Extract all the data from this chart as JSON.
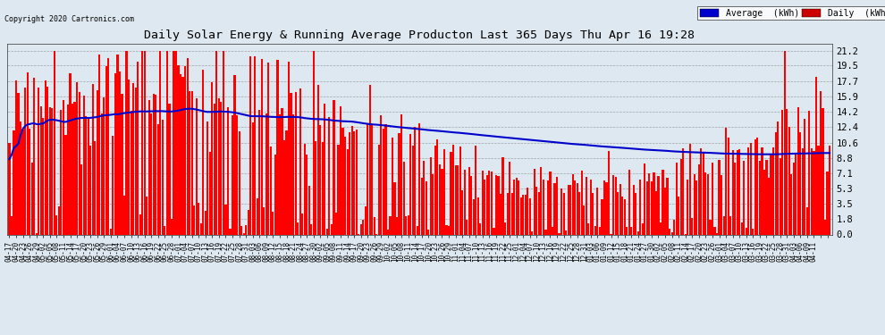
{
  "title": "Daily Solar Energy & Running Average Producton Last 365 Days Thu Apr 16 19:28",
  "copyright": "Copyright 2020 Cartronics.com",
  "bar_color": "#ff0000",
  "avg_color": "#0000cc",
  "background_color": "#dde8f0",
  "plot_background": "#dde8f0",
  "yticks": [
    0.0,
    1.8,
    3.5,
    5.3,
    7.1,
    8.8,
    10.6,
    12.4,
    14.2,
    15.9,
    17.7,
    19.5,
    21.2
  ],
  "ylim": [
    0.0,
    22.0
  ],
  "legend_avg_color": "#0000cc",
  "legend_daily_color": "#cc0000",
  "xtick_labels": [
    "04-17",
    "04-20",
    "04-23",
    "04-26",
    "04-29",
    "05-02",
    "05-05",
    "05-08",
    "05-11",
    "05-14",
    "05-17",
    "05-20",
    "05-23",
    "05-26",
    "05-29",
    "06-01",
    "06-04",
    "06-07",
    "06-10",
    "06-13",
    "06-16",
    "06-19",
    "06-22",
    "06-25",
    "06-28",
    "07-01",
    "07-04",
    "07-07",
    "07-10",
    "07-13",
    "07-16",
    "07-19",
    "07-22",
    "07-25",
    "07-28",
    "07-31",
    "08-03",
    "08-06",
    "08-09",
    "08-12",
    "08-15",
    "08-18",
    "08-21",
    "08-24",
    "08-27",
    "08-30",
    "09-02",
    "09-05",
    "09-08",
    "09-11",
    "09-14",
    "09-17",
    "09-20",
    "09-23",
    "09-26",
    "09-29",
    "10-02",
    "10-05",
    "10-08",
    "10-11",
    "10-14",
    "10-17",
    "10-20",
    "10-23",
    "10-26",
    "10-29",
    "11-01",
    "11-04",
    "11-07",
    "11-10",
    "11-13",
    "11-16",
    "11-19",
    "11-22",
    "11-25",
    "12-01",
    "12-04",
    "12-07",
    "12-10",
    "12-13",
    "12-16",
    "12-19",
    "12-22",
    "12-25",
    "12-28",
    "12-31",
    "01-03",
    "01-06",
    "01-09",
    "01-12",
    "01-15",
    "01-18",
    "01-21",
    "01-24",
    "01-27",
    "01-30",
    "02-02",
    "02-05",
    "02-08",
    "02-11",
    "02-14",
    "02-17",
    "02-20",
    "02-23",
    "02-26",
    "03-01",
    "03-04",
    "03-07",
    "03-10",
    "03-13",
    "03-16",
    "03-19",
    "03-22",
    "03-25",
    "03-28",
    "03-31",
    "04-03",
    "04-06",
    "04-09",
    "04-11"
  ],
  "num_days": 365
}
